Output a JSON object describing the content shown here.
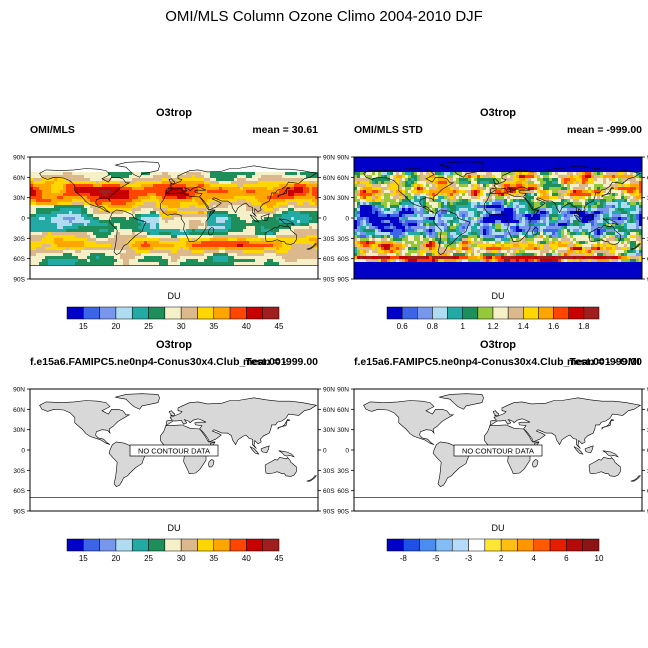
{
  "main_title": "OMI/MLS Column Ozone Climo 2004-2010 DJF",
  "chart_data": [
    {
      "type": "heatmap",
      "title": "O3trop",
      "left_label": "OMI/MLS",
      "right_label": "mean =  30.61",
      "has_data": true,
      "field": "mean",
      "lat_ticks": [
        "90N",
        "60N",
        "30N",
        "0",
        "30S",
        "60S",
        "90S"
      ],
      "colorbar": {
        "label": "DU",
        "colors": [
          "#0000c8",
          "#3c64e6",
          "#7896eb",
          "#afdcf0",
          "#24aaa5",
          "#1e8f5a",
          "#f5f0c8",
          "#dcb98c",
          "#ffd700",
          "#ffa500",
          "#ff4500",
          "#c80000",
          "#a01e1e"
        ],
        "tick_labels": [
          "15",
          "20",
          "25",
          "30",
          "35",
          "40",
          "45"
        ]
      }
    },
    {
      "type": "heatmap",
      "title": "O3trop",
      "left_label": "OMI/MLS STD",
      "right_label": "mean = -999.00",
      "has_data": true,
      "field": "std",
      "lat_ticks": [
        "90N",
        "60N",
        "30N",
        "0",
        "30S",
        "60S",
        "90S"
      ],
      "colorbar": {
        "label": "DU",
        "colors": [
          "#0000c8",
          "#3c64e6",
          "#7896eb",
          "#afdcf0",
          "#24aaa5",
          "#1e8f5a",
          "#96c83c",
          "#f5f0c8",
          "#dcb98c",
          "#ffd700",
          "#ffa500",
          "#ff4500",
          "#c80000",
          "#a01e1e"
        ],
        "tick_labels": [
          "0.6",
          "0.8",
          "1",
          "1.2",
          "1.4",
          "1.6",
          "1.8"
        ]
      }
    },
    {
      "type": "heatmap",
      "title": "O3trop",
      "left_label": "f.e15a6.FAMIPC5.ne0np4-Conus30x4.Club_Test.001",
      "right_label": "mean = -999.00",
      "has_data": false,
      "no_data_text": "NO CONTOUR DATA",
      "lat_ticks": [
        "90N",
        "60N",
        "30N",
        "0",
        "30S",
        "60S",
        "90S"
      ],
      "colorbar": {
        "label": "DU",
        "colors": [
          "#0000c8",
          "#3c64e6",
          "#7896eb",
          "#afdcf0",
          "#24aaa5",
          "#1e8f5a",
          "#f5f0c8",
          "#dcb98c",
          "#ffd700",
          "#ffa500",
          "#ff4500",
          "#c80000",
          "#a01e1e"
        ],
        "tick_labels": [
          "15",
          "20",
          "25",
          "30",
          "35",
          "40",
          "45"
        ]
      }
    },
    {
      "type": "heatmap",
      "title": "O3trop",
      "left_label": "f.e15a6.FAMIPC5.ne0np4-Conus30x4.Club_Test.001 - OMI",
      "right_label": "mean = -999.00",
      "has_data": false,
      "no_data_text": "NO CONTOUR DATA",
      "lat_ticks": [
        "90N",
        "60N",
        "30N",
        "0",
        "30S",
        "60S",
        "90S"
      ],
      "colorbar": {
        "label": "DU",
        "colors": [
          "#0000c8",
          "#1e50e6",
          "#4b8cf0",
          "#82bef5",
          "#b4dcfa",
          "#ffffff",
          "#ffe632",
          "#ffbe14",
          "#ff9600",
          "#ff5a00",
          "#e61e00",
          "#b40a0a",
          "#8c1414"
        ],
        "tick_labels": [
          "-8",
          "-5",
          "-3",
          "2",
          "4",
          "6",
          "10"
        ]
      }
    }
  ]
}
